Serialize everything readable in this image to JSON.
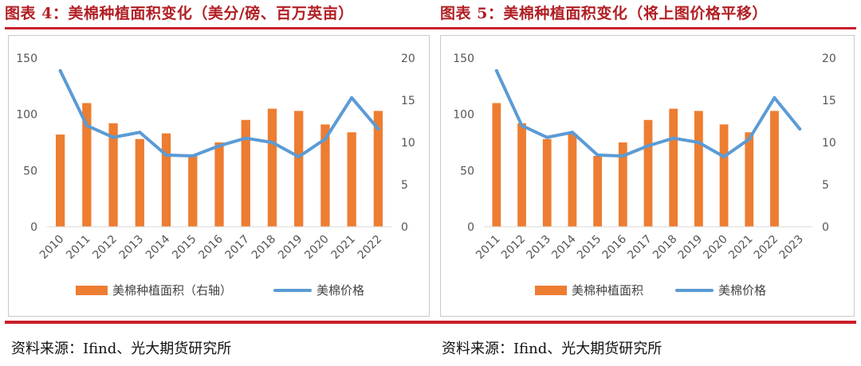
{
  "titles": {
    "left": "图表 4：美棉种植面积变化（美分/磅、百万英亩）",
    "right": "图表 5：美棉种植面积变化（将上图价格平移）"
  },
  "sources": {
    "left": "资料来源：Ifind、光大期货研究所",
    "right": "资料来源：Ifind、光大期货研究所"
  },
  "colors": {
    "bar": "#ed7d31",
    "line": "#5b9bd5",
    "title": "#b11f24",
    "rule": "#c8202a"
  },
  "chart_data": [
    {
      "type": "bar",
      "categories": [
        "2010",
        "2011",
        "2012",
        "2013",
        "2014",
        "2015",
        "2016",
        "2017",
        "2018",
        "2019",
        "2020",
        "2021",
        "2022"
      ],
      "series": [
        {
          "name": "美棉种植面积（右轴）",
          "kind": "bar",
          "axis": "left",
          "values": [
            82,
            110,
            92,
            78,
            83,
            63,
            75,
            95,
            105,
            103,
            91,
            84,
            103
          ]
        },
        {
          "name": "美棉价格",
          "kind": "line",
          "axis": "right",
          "values": [
            18.5,
            12.0,
            10.6,
            11.2,
            8.5,
            8.4,
            9.6,
            10.5,
            10.0,
            8.3,
            10.4,
            15.3,
            11.6
          ]
        }
      ],
      "left_axis": {
        "min": 0,
        "max": 150,
        "ticks": [
          0,
          50,
          100,
          150
        ]
      },
      "right_axis": {
        "min": 0,
        "max": 20,
        "ticks": [
          0,
          5,
          10,
          15,
          20
        ]
      },
      "grid": false,
      "legend": "bottom"
    },
    {
      "type": "bar",
      "categories": [
        "2011",
        "2012",
        "2013",
        "2014",
        "2015",
        "2016",
        "2017",
        "2018",
        "2019",
        "2020",
        "2021",
        "2022",
        "2023"
      ],
      "series": [
        {
          "name": "美棉种植面积",
          "kind": "bar",
          "axis": "left",
          "values": [
            110,
            92,
            78,
            83,
            63,
            75,
            95,
            105,
            103,
            91,
            84,
            103,
            null
          ]
        },
        {
          "name": "美棉价格",
          "kind": "line",
          "axis": "right",
          "values": [
            18.5,
            12.0,
            10.6,
            11.2,
            8.5,
            8.4,
            9.6,
            10.5,
            10.0,
            8.3,
            10.4,
            15.3,
            11.6
          ]
        }
      ],
      "left_axis": {
        "min": 0,
        "max": 150,
        "ticks": [
          0,
          50,
          100,
          150
        ]
      },
      "right_axis": {
        "min": 0,
        "max": 20,
        "ticks": [
          0,
          5,
          10,
          15,
          20
        ]
      },
      "grid": false,
      "legend": "bottom"
    }
  ]
}
